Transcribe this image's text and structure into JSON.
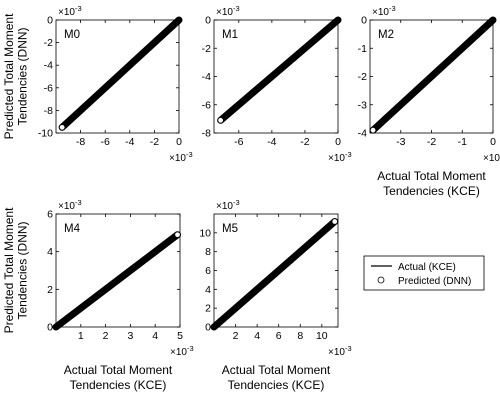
{
  "ylabel_lines": [
    "Predicted Total Moment",
    "Tendencies (DNN)"
  ],
  "xlabel_lines": [
    "Actual Total Moment",
    "Tendencies (KCE)"
  ],
  "legend": {
    "actual_label": "Actual (KCE)",
    "predicted_label": "Predicted (DNN)",
    "placement": "right, beside bottom row"
  },
  "colors": {
    "line": "#000000",
    "marker": "#000000",
    "axes": "#000000",
    "background": "#ffffff"
  },
  "chart_data": [
    {
      "type": "scatter",
      "panel_label": "M0",
      "exponent_label": "×10",
      "exponent_power": "-3",
      "xlim": [
        -10,
        0
      ],
      "ylim": [
        -10,
        0
      ],
      "xticks": [
        -8,
        -6,
        -4,
        -2,
        0
      ],
      "yticks": [
        -10,
        -8,
        -6,
        -4,
        -2,
        0
      ],
      "show_xlabel": false,
      "show_ylabel": true,
      "series": [
        {
          "name": "Actual (KCE)",
          "kind": "line",
          "x": [
            -9.5,
            0
          ],
          "y": [
            -9.5,
            0
          ]
        },
        {
          "name": "Predicted (DNN)",
          "kind": "markers",
          "x": [
            -9.5,
            -9.0,
            -8.5,
            -8.0,
            -7.5,
            -7.0,
            -6.5,
            -6.0,
            -5.5,
            -5.0,
            -4.5,
            -4.0,
            -3.5,
            -3.0,
            -2.5,
            -2.0,
            -1.5,
            -1.0,
            -0.5,
            0.0
          ],
          "y": [
            -9.5,
            -9.0,
            -8.5,
            -8.0,
            -7.5,
            -7.0,
            -6.5,
            -6.0,
            -5.5,
            -5.0,
            -4.5,
            -4.0,
            -3.5,
            -3.0,
            -2.5,
            -2.0,
            -1.5,
            -1.0,
            -0.5,
            0.0
          ]
        }
      ]
    },
    {
      "type": "scatter",
      "panel_label": "M1",
      "exponent_label": "×10",
      "exponent_power": "-3",
      "xlim": [
        -7.5,
        0
      ],
      "ylim": [
        -8,
        0
      ],
      "xticks": [
        -6,
        -4,
        -2,
        0
      ],
      "yticks": [
        -8,
        -6,
        -4,
        -2,
        0
      ],
      "show_xlabel": false,
      "show_ylabel": false,
      "series": [
        {
          "name": "Actual (KCE)",
          "kind": "line",
          "x": [
            -7.1,
            0
          ],
          "y": [
            -7.1,
            0
          ]
        },
        {
          "name": "Predicted (DNN)",
          "kind": "markers",
          "x": [
            -7.1,
            -6.7,
            -6.3,
            -5.9,
            -5.5,
            -5.1,
            -4.7,
            -4.3,
            -3.9,
            -3.5,
            -3.1,
            -2.7,
            -2.3,
            -1.9,
            -1.5,
            -1.1,
            -0.7,
            -0.3,
            0.0
          ],
          "y": [
            -7.1,
            -6.7,
            -6.3,
            -5.9,
            -5.5,
            -5.1,
            -4.7,
            -4.3,
            -3.9,
            -3.5,
            -3.1,
            -2.7,
            -2.3,
            -1.9,
            -1.5,
            -1.1,
            -0.7,
            -0.3,
            0.0
          ]
        }
      ]
    },
    {
      "type": "scatter",
      "panel_label": "M2",
      "exponent_label": "×10",
      "exponent_power": "-3",
      "xlim": [
        -4,
        0
      ],
      "ylim": [
        -4,
        0
      ],
      "xticks": [
        -3,
        -2,
        -1,
        0
      ],
      "yticks": [
        -4,
        -3,
        -2,
        -1,
        0
      ],
      "show_xlabel": true,
      "show_ylabel": false,
      "series": [
        {
          "name": "Actual (KCE)",
          "kind": "line",
          "x": [
            -3.9,
            0
          ],
          "y": [
            -3.9,
            0
          ]
        },
        {
          "name": "Predicted (DNN)",
          "kind": "markers",
          "x": [
            -3.9,
            -3.7,
            -3.5,
            -3.3,
            -3.1,
            -2.9,
            -2.7,
            -2.5,
            -2.3,
            -2.1,
            -1.9,
            -1.7,
            -1.5,
            -1.3,
            -1.1,
            -0.9,
            -0.7,
            -0.5,
            -0.3,
            -0.1,
            0.0
          ],
          "y": [
            -3.9,
            -3.7,
            -3.5,
            -3.3,
            -3.1,
            -2.9,
            -2.7,
            -2.5,
            -2.3,
            -2.1,
            -1.9,
            -1.7,
            -1.5,
            -1.3,
            -1.1,
            -0.9,
            -0.7,
            -0.5,
            -0.3,
            -0.1,
            0.0
          ]
        }
      ]
    },
    {
      "type": "scatter",
      "panel_label": "M4",
      "exponent_label": "×10",
      "exponent_power": "-3",
      "xlim": [
        0,
        5
      ],
      "ylim": [
        0,
        6
      ],
      "xticks": [
        1,
        2,
        3,
        4,
        5
      ],
      "yticks": [
        0,
        2,
        4,
        6
      ],
      "show_xlabel": true,
      "show_ylabel": true,
      "series": [
        {
          "name": "Actual (KCE)",
          "kind": "line",
          "x": [
            0,
            4.9
          ],
          "y": [
            0,
            4.9
          ]
        },
        {
          "name": "Predicted (DNN)",
          "kind": "markers",
          "x": [
            0.0,
            0.25,
            0.5,
            0.75,
            1.0,
            1.25,
            1.5,
            1.75,
            2.0,
            2.25,
            2.5,
            2.75,
            3.0,
            3.25,
            3.5,
            3.75,
            4.0,
            4.25,
            4.5,
            4.7,
            4.9
          ],
          "y": [
            0.0,
            0.25,
            0.5,
            0.75,
            1.0,
            1.25,
            1.5,
            1.75,
            2.0,
            2.25,
            2.5,
            2.75,
            3.0,
            3.25,
            3.5,
            3.75,
            4.0,
            4.25,
            4.5,
            4.7,
            4.9
          ]
        }
      ]
    },
    {
      "type": "scatter",
      "panel_label": "M5",
      "exponent_label": "×10",
      "exponent_power": "-3",
      "xlim": [
        0,
        11.5
      ],
      "ylim": [
        0,
        12
      ],
      "xticks": [
        2,
        4,
        6,
        8,
        10
      ],
      "yticks": [
        0,
        2,
        4,
        6,
        8,
        10
      ],
      "show_xlabel": true,
      "show_ylabel": false,
      "series": [
        {
          "name": "Actual (KCE)",
          "kind": "line",
          "x": [
            0,
            11.2
          ],
          "y": [
            0,
            11.2
          ]
        },
        {
          "name": "Predicted (DNN)",
          "kind": "markers",
          "x": [
            0.0,
            0.6,
            1.2,
            1.8,
            2.4,
            3.0,
            3.6,
            4.2,
            4.8,
            5.4,
            6.0,
            6.6,
            7.2,
            7.8,
            8.4,
            9.0,
            9.6,
            10.2,
            10.7,
            11.2
          ],
          "y": [
            0.0,
            0.6,
            1.2,
            1.8,
            2.4,
            3.0,
            3.6,
            4.2,
            4.8,
            5.4,
            6.0,
            6.6,
            7.2,
            7.8,
            8.4,
            9.0,
            9.6,
            10.2,
            10.7,
            11.2
          ]
        }
      ]
    }
  ]
}
